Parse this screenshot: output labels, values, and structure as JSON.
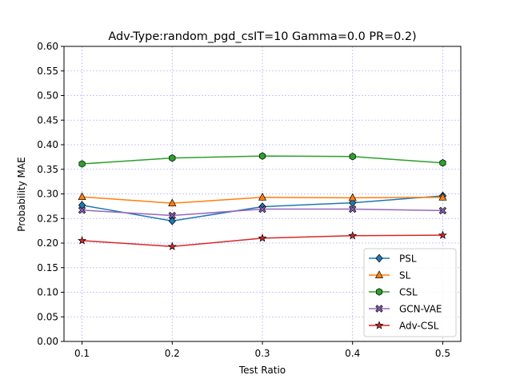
{
  "chart_data": {
    "type": "line",
    "title": "Adv-Type:random_pgd_csIT=10 Gamma=0.0 PR=0.2)",
    "xlabel": "Test Ratio",
    "ylabel": "Probability MAE",
    "x": [
      0.1,
      0.2,
      0.3,
      0.4,
      0.5
    ],
    "x_tick_labels": [
      "0.1",
      "0.2",
      "0.3",
      "0.4",
      "0.5"
    ],
    "xlim": [
      0.08,
      0.52
    ],
    "ylim": [
      0.0,
      0.6
    ],
    "y_ticks": [
      0.0,
      0.05,
      0.1,
      0.15,
      0.2,
      0.25,
      0.3,
      0.35,
      0.4,
      0.45,
      0.5,
      0.55,
      0.6
    ],
    "y_tick_labels": [
      "0.00",
      "0.05",
      "0.10",
      "0.15",
      "0.20",
      "0.25",
      "0.30",
      "0.35",
      "0.40",
      "0.45",
      "0.50",
      "0.55",
      "0.60"
    ],
    "grid": true,
    "grid_color": "#b8b8ff",
    "legend_position": "lower-right",
    "series": [
      {
        "name": "PSL",
        "values": [
          0.277,
          0.245,
          0.274,
          0.282,
          0.296
        ],
        "color": "#1f77b4",
        "marker": "diamond"
      },
      {
        "name": "SL",
        "values": [
          0.294,
          0.281,
          0.293,
          0.292,
          0.293
        ],
        "color": "#ff7f0e",
        "marker": "triangle"
      },
      {
        "name": "CSL",
        "values": [
          0.361,
          0.373,
          0.377,
          0.376,
          0.363
        ],
        "color": "#2ca02c",
        "marker": "hexagon"
      },
      {
        "name": "GCN-VAE",
        "values": [
          0.267,
          0.256,
          0.269,
          0.269,
          0.266
        ],
        "color": "#9467bd",
        "marker": "x-filled"
      },
      {
        "name": "Adv-CSL",
        "values": [
          0.205,
          0.193,
          0.21,
          0.215,
          0.216
        ],
        "color": "#d62728",
        "marker": "star"
      }
    ]
  }
}
